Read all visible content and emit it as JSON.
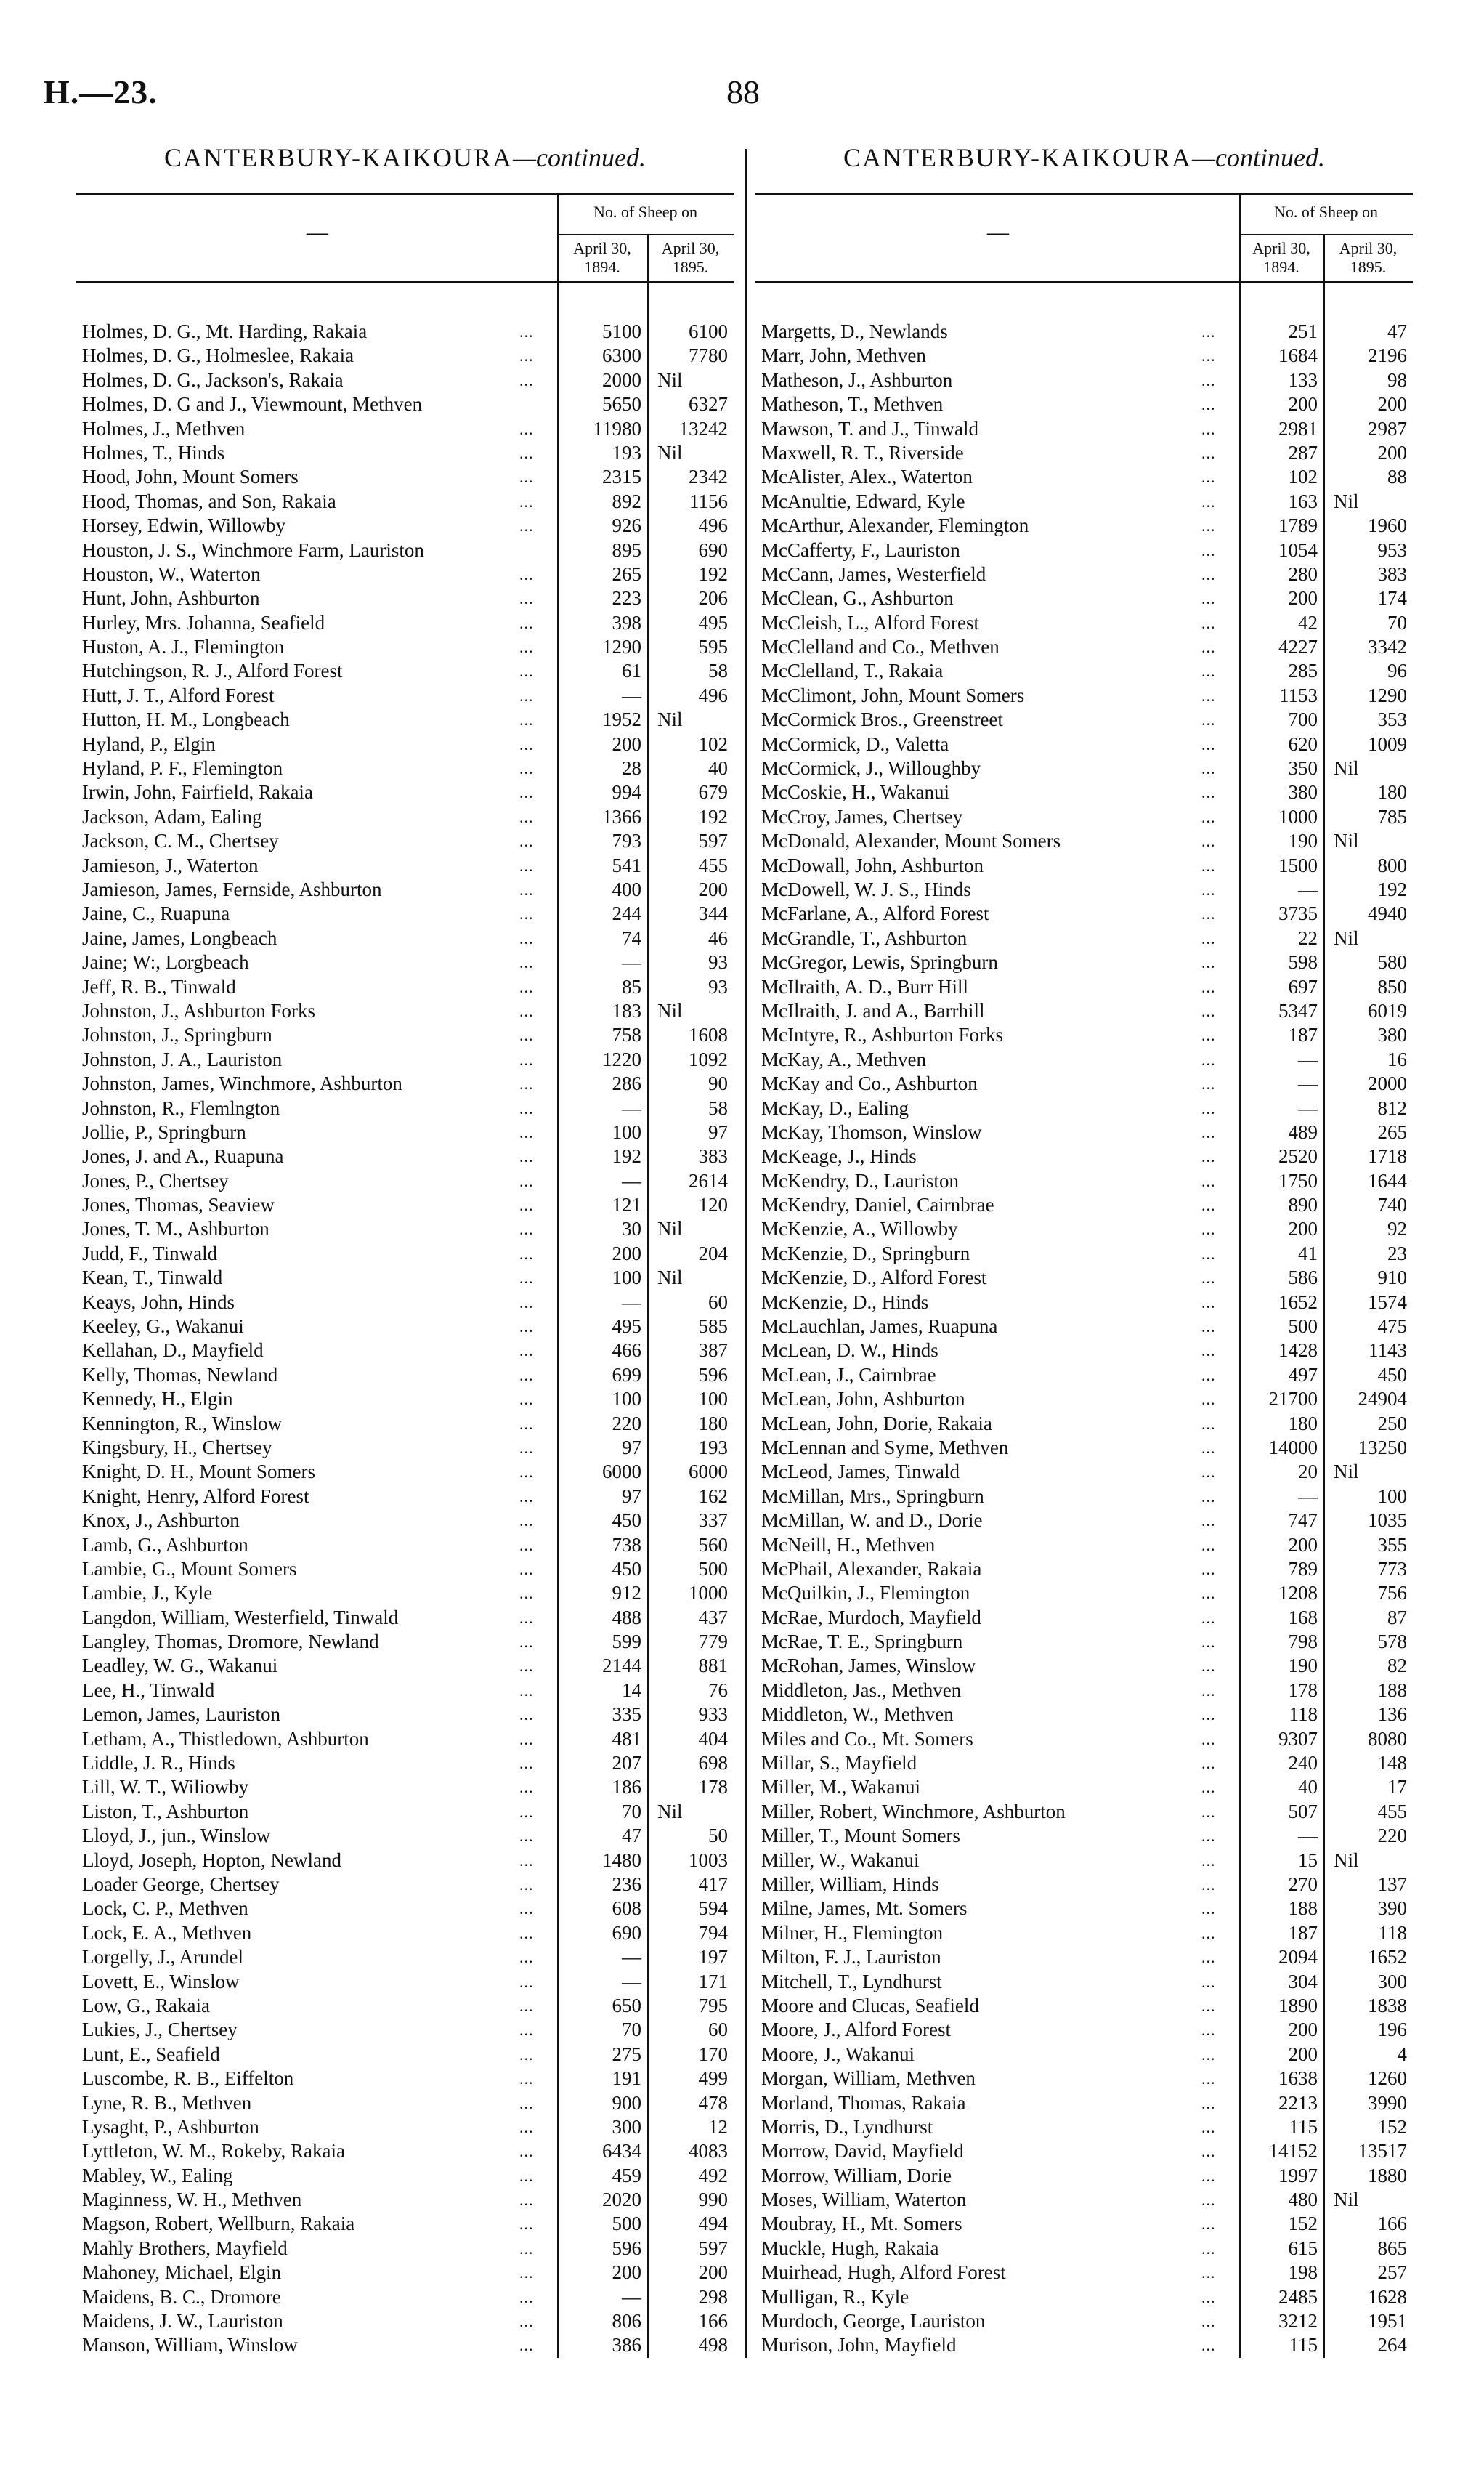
{
  "page": {
    "id": "H.—23.",
    "number": "88"
  },
  "section_title": "CANTERBURY-KAIKOURA",
  "section_suffix": "—continued.",
  "header": {
    "group": "No. of Sheep on",
    "name_col": "—",
    "col1": "April 30, 1894.",
    "col2": "April 30, 1895."
  },
  "leader": "...",
  "left_rows": [
    [
      "Holmes, D. G., Mt. Harding, Rakaia",
      "5100",
      "6100"
    ],
    [
      "Holmes, D. G., Holmeslee, Rakaia",
      "6300",
      "7780"
    ],
    [
      "Holmes, D. G., Jackson's, Rakaia",
      "2000",
      "Nil"
    ],
    [
      "Holmes, D. G and J., Viewmount, Methven",
      "5650",
      "6327",
      false
    ],
    [
      "Holmes, J., Methven",
      "11980",
      "13242"
    ],
    [
      "Holmes, T., Hinds",
      "193",
      "Nil"
    ],
    [
      "Hood, John, Mount Somers",
      "2315",
      "2342"
    ],
    [
      "Hood, Thomas, and Son, Rakaia",
      "892",
      "1156"
    ],
    [
      "Horsey, Edwin, Willowby",
      "926",
      "496"
    ],
    [
      "Houston, J. S., Winchmore Farm, Lauriston",
      "895",
      "690",
      false
    ],
    [
      "Houston, W., Waterton",
      "265",
      "192"
    ],
    [
      "Hunt, John, Ashburton",
      "223",
      "206"
    ],
    [
      "Hurley, Mrs. Johanna, Seafield",
      "398",
      "495"
    ],
    [
      "Huston, A. J., Flemington",
      "1290",
      "595"
    ],
    [
      "Hutchingson, R. J., Alford Forest",
      "61",
      "58"
    ],
    [
      "Hutt, J. T., Alford Forest",
      "—",
      "496"
    ],
    [
      "Hutton, H. M., Longbeach",
      "1952",
      "Nil"
    ],
    [
      "Hyland, P., Elgin",
      "200",
      "102"
    ],
    [
      "Hyland, P. F., Flemington",
      "28",
      "40"
    ],
    [
      "Irwin, John, Fairfield, Rakaia",
      "994",
      "679"
    ],
    [
      "Jackson, Adam, Ealing",
      "1366",
      "192"
    ],
    [
      "Jackson, C. M., Chertsey",
      "793",
      "597"
    ],
    [
      "Jamieson, J., Waterton",
      "541",
      "455"
    ],
    [
      "Jamieson, James, Fernside, Ashburton",
      "400",
      "200"
    ],
    [
      "Jaine, C., Ruapuna",
      "244",
      "344"
    ],
    [
      "Jaine, James, Longbeach",
      "74",
      "46"
    ],
    [
      "Jaine; W:, Lorgbeach",
      "—",
      "93"
    ],
    [
      "Jeff, R. B., Tinwald",
      "85",
      "93"
    ],
    [
      "Johnston, J., Ashburton Forks",
      "183",
      "Nil"
    ],
    [
      "Johnston, J., Springburn",
      "758",
      "1608"
    ],
    [
      "Johnston, J. A., Lauriston",
      "1220",
      "1092"
    ],
    [
      "Johnston, James, Winchmore, Ashburton",
      "286",
      "90"
    ],
    [
      "Johnston, R., Flemlngton",
      "—",
      "58"
    ],
    [
      "Jollie, P., Springburn",
      "100",
      "97"
    ],
    [
      "Jones, J. and A., Ruapuna",
      "192",
      "383"
    ],
    [
      "Jones, P., Chertsey",
      "—",
      "2614"
    ],
    [
      "Jones, Thomas, Seaview",
      "121",
      "120"
    ],
    [
      "Jones, T. M., Ashburton",
      "30",
      "Nil"
    ],
    [
      "Judd, F., Tinwald",
      "200",
      "204"
    ],
    [
      "Kean, T., Tinwald",
      "100",
      "Nil"
    ],
    [
      "Keays, John, Hinds",
      "—",
      "60"
    ],
    [
      "Keeley, G., Wakanui",
      "495",
      "585"
    ],
    [
      "Kellahan, D., Mayfield",
      "466",
      "387"
    ],
    [
      "Kelly, Thomas, Newland",
      "699",
      "596"
    ],
    [
      "Kennedy, H., Elgin",
      "100",
      "100"
    ],
    [
      "Kennington, R., Winslow",
      "220",
      "180"
    ],
    [
      "Kingsbury, H., Chertsey",
      "97",
      "193"
    ],
    [
      "Knight, D. H., Mount Somers",
      "6000",
      "6000"
    ],
    [
      "Knight, Henry, Alford Forest",
      "97",
      "162"
    ],
    [
      "Knox, J., Ashburton",
      "450",
      "337"
    ],
    [
      "Lamb, G., Ashburton",
      "738",
      "560"
    ],
    [
      "Lambie, G., Mount Somers",
      "450",
      "500"
    ],
    [
      "Lambie, J., Kyle",
      "912",
      "1000"
    ],
    [
      "Langdon, William, Westerfield, Tinwald",
      "488",
      "437"
    ],
    [
      "Langley, Thomas, Dromore, Newland",
      "599",
      "779"
    ],
    [
      "Leadley, W. G., Wakanui",
      "2144",
      "881"
    ],
    [
      "Lee, H., Tinwald",
      "14",
      "76"
    ],
    [
      "Lemon, James, Lauriston",
      "335",
      "933"
    ],
    [
      "Letham, A., Thistledown, Ashburton",
      "481",
      "404"
    ],
    [
      "Liddle, J. R., Hinds",
      "207",
      "698"
    ],
    [
      "Lill, W. T., Wiliowby",
      "186",
      "178"
    ],
    [
      "Liston, T., Ashburton",
      "70",
      "Nil"
    ],
    [
      "Lloyd, J., jun., Winslow",
      "47",
      "50"
    ],
    [
      "Lloyd, Joseph, Hopton, Newland",
      "1480",
      "1003"
    ],
    [
      "Loader George, Chertsey",
      "236",
      "417"
    ],
    [
      "Lock, C. P., Methven",
      "608",
      "594"
    ],
    [
      "Lock, E. A., Methven",
      "690",
      "794"
    ],
    [
      "Lorgelly, J., Arundel",
      "—",
      "197"
    ],
    [
      "Lovett, E., Winslow",
      "—",
      "171"
    ],
    [
      "Low, G., Rakaia",
      "650",
      "795"
    ],
    [
      "Lukies, J., Chertsey",
      "70",
      "60"
    ],
    [
      "Lunt, E., Seafield",
      "275",
      "170"
    ],
    [
      "Luscombe, R. B., Eiffelton",
      "191",
      "499"
    ],
    [
      "Lyne, R. B., Methven",
      "900",
      "478"
    ],
    [
      "Lysaght, P., Ashburton",
      "300",
      "12"
    ],
    [
      "Lyttleton, W. M., Rokeby, Rakaia",
      "6434",
      "4083"
    ],
    [
      "Mabley, W., Ealing",
      "459",
      "492"
    ],
    [
      "Maginness, W. H., Methven",
      "2020",
      "990"
    ],
    [
      "Magson, Robert, Wellburn, Rakaia",
      "500",
      "494"
    ],
    [
      "Mahly Brothers, Mayfield",
      "596",
      "597"
    ],
    [
      "Mahoney, Michael, Elgin",
      "200",
      "200"
    ],
    [
      "Maidens, B. C., Dromore",
      "—",
      "298"
    ],
    [
      "Maidens, J. W., Lauriston",
      "806",
      "166"
    ],
    [
      "Manson, William, Winslow",
      "386",
      "498"
    ]
  ],
  "right_rows": [
    [
      "Margetts, D., Newlands",
      "251",
      "47"
    ],
    [
      "Marr, John, Methven",
      "1684",
      "2196"
    ],
    [
      "Matheson, J., Ashburton",
      "133",
      "98"
    ],
    [
      "Matheson, T., Methven",
      "200",
      "200"
    ],
    [
      "Mawson, T. and J., Tinwald",
      "2981",
      "2987"
    ],
    [
      "Maxwell, R. T., Riverside",
      "287",
      "200"
    ],
    [
      "McAlister, Alex., Waterton",
      "102",
      "88"
    ],
    [
      "McAnultie, Edward, Kyle",
      "163",
      "Nil"
    ],
    [
      "McArthur, Alexander, Flemington",
      "1789",
      "1960"
    ],
    [
      "McCafferty, F., Lauriston",
      "1054",
      "953"
    ],
    [
      "McCann, James, Westerfield",
      "280",
      "383"
    ],
    [
      "McClean, G., Ashburton",
      "200",
      "174"
    ],
    [
      "McCleish, L., Alford Forest",
      "42",
      "70"
    ],
    [
      "McClelland and Co., Methven",
      "4227",
      "3342"
    ],
    [
      "McClelland, T., Rakaia",
      "285",
      "96"
    ],
    [
      "McClimont, John, Mount Somers",
      "1153",
      "1290"
    ],
    [
      "McCormick Bros., Greenstreet",
      "700",
      "353"
    ],
    [
      "McCormick, D., Valetta",
      "620",
      "1009"
    ],
    [
      "McCormick, J., Willoughby",
      "350",
      "Nil"
    ],
    [
      "McCoskie, H., Wakanui",
      "380",
      "180"
    ],
    [
      "McCroy, James, Chertsey",
      "1000",
      "785"
    ],
    [
      "McDonald, Alexander, Mount Somers",
      "190",
      "Nil"
    ],
    [
      "McDowall, John, Ashburton",
      "1500",
      "800"
    ],
    [
      "McDowell, W. J. S., Hinds",
      "—",
      "192"
    ],
    [
      "McFarlane, A., Alford Forest",
      "3735",
      "4940"
    ],
    [
      "McGrandle, T., Ashburton",
      "22",
      "Nil"
    ],
    [
      "McGregor, Lewis, Springburn",
      "598",
      "580"
    ],
    [
      "McIlraith, A. D., Burr Hill",
      "697",
      "850"
    ],
    [
      "McIlraith, J. and A., Barrhill",
      "5347",
      "6019"
    ],
    [
      "McIntyre, R., Ashburton Forks",
      "187",
      "380"
    ],
    [
      "McKay, A., Methven",
      "—",
      "16"
    ],
    [
      "McKay and Co., Ashburton",
      "—",
      "2000"
    ],
    [
      "McKay, D., Ealing",
      "—",
      "812"
    ],
    [
      "McKay, Thomson, Winslow",
      "489",
      "265"
    ],
    [
      "McKeage, J., Hinds",
      "2520",
      "1718"
    ],
    [
      "McKendry, D., Lauriston",
      "1750",
      "1644"
    ],
    [
      "McKendry, Daniel, Cairnbrae",
      "890",
      "740"
    ],
    [
      "McKenzie, A., Willowby",
      "200",
      "92"
    ],
    [
      "McKenzie, D., Springburn",
      "41",
      "23"
    ],
    [
      "McKenzie, D., Alford Forest",
      "586",
      "910"
    ],
    [
      "McKenzie, D., Hinds",
      "1652",
      "1574"
    ],
    [
      "McLauchlan, James, Ruapuna",
      "500",
      "475"
    ],
    [
      "McLean, D. W., Hinds",
      "1428",
      "1143"
    ],
    [
      "McLean, J., Cairnbrae",
      "497",
      "450"
    ],
    [
      "McLean, John, Ashburton",
      "21700",
      "24904"
    ],
    [
      "McLean, John, Dorie, Rakaia",
      "180",
      "250"
    ],
    [
      "McLennan and Syme, Methven",
      "14000",
      "13250"
    ],
    [
      "McLeod, James, Tinwald",
      "20",
      "Nil"
    ],
    [
      "McMillan, Mrs., Springburn",
      "—",
      "100"
    ],
    [
      "McMillan, W. and D., Dorie",
      "747",
      "1035"
    ],
    [
      "McNeill, H., Methven",
      "200",
      "355"
    ],
    [
      "McPhail, Alexander, Rakaia",
      "789",
      "773"
    ],
    [
      "McQuilkin, J., Flemington",
      "1208",
      "756"
    ],
    [
      "McRae, Murdoch, Mayfield",
      "168",
      "87"
    ],
    [
      "McRae, T. E., Springburn",
      "798",
      "578"
    ],
    [
      "McRohan, James, Winslow",
      "190",
      "82"
    ],
    [
      "Middleton, Jas., Methven",
      "178",
      "188"
    ],
    [
      "Middleton, W., Methven",
      "118",
      "136"
    ],
    [
      "Miles and Co., Mt. Somers",
      "9307",
      "8080"
    ],
    [
      "Millar, S., Mayfield",
      "240",
      "148"
    ],
    [
      "Miller, M., Wakanui",
      "40",
      "17"
    ],
    [
      "Miller, Robert, Winchmore, Ashburton",
      "507",
      "455"
    ],
    [
      "Miller, T., Mount Somers",
      "—",
      "220"
    ],
    [
      "Miller, W., Wakanui",
      "15",
      "Nil"
    ],
    [
      "Miller, William, Hinds",
      "270",
      "137"
    ],
    [
      "Milne, James, Mt. Somers",
      "188",
      "390"
    ],
    [
      "Milner, H., Flemington",
      "187",
      "118"
    ],
    [
      "Milton, F. J., Lauriston",
      "2094",
      "1652"
    ],
    [
      "Mitchell, T., Lyndhurst",
      "304",
      "300"
    ],
    [
      "Moore and Clucas, Seafield",
      "1890",
      "1838"
    ],
    [
      "Moore, J., Alford Forest",
      "200",
      "196"
    ],
    [
      "Moore, J., Wakanui",
      "200",
      "4"
    ],
    [
      "Morgan, William, Methven",
      "1638",
      "1260"
    ],
    [
      "Morland, Thomas, Rakaia",
      "2213",
      "3990"
    ],
    [
      "Morris, D., Lyndhurst",
      "115",
      "152"
    ],
    [
      "Morrow, David, Mayfield",
      "14152",
      "13517"
    ],
    [
      "Morrow, William, Dorie",
      "1997",
      "1880"
    ],
    [
      "Moses, William, Waterton",
      "480",
      "Nil"
    ],
    [
      "Moubray, H., Mt. Somers",
      "152",
      "166"
    ],
    [
      "Muckle, Hugh, Rakaia",
      "615",
      "865"
    ],
    [
      "Muirhead, Hugh, Alford Forest",
      "198",
      "257"
    ],
    [
      "Mulligan, R., Kyle",
      "2485",
      "1628"
    ],
    [
      "Murdoch, George, Lauriston",
      "3212",
      "1951"
    ],
    [
      "Murison, John, Mayfield",
      "115",
      "264"
    ]
  ]
}
